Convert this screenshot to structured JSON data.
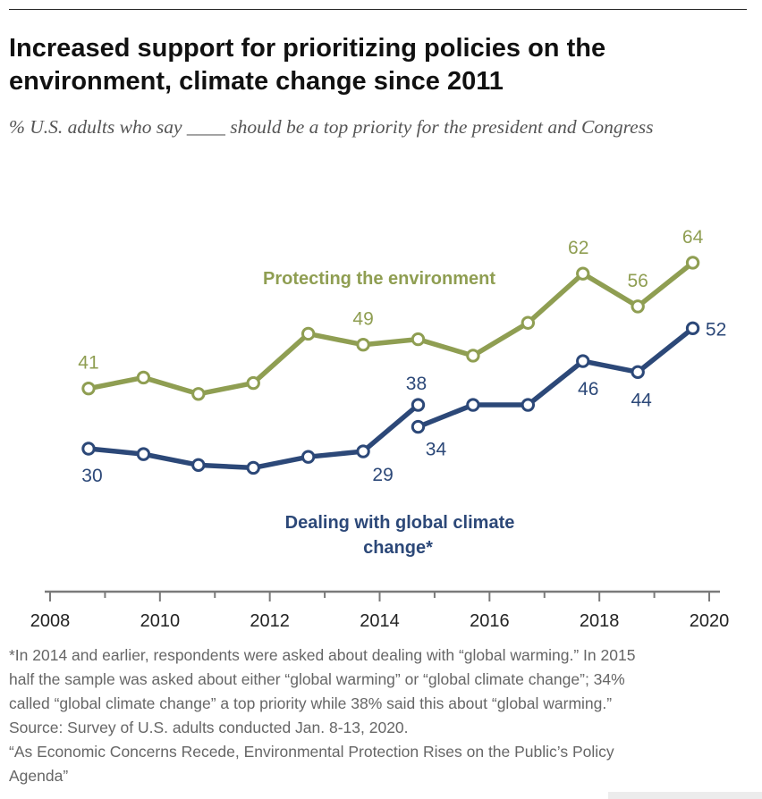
{
  "header": {
    "title": "Increased support for prioritizing policies on the environment, climate change since 2011",
    "subtitle": "% U.S. adults who say ____ should be a top priority for the president and Congress"
  },
  "chart_data": {
    "type": "line",
    "title": "Increased support for prioritizing policies on the environment, climate change since 2011",
    "xlabel": "",
    "ylabel": "",
    "xlim": [
      2008,
      2020
    ],
    "ylim": [
      20,
      70
    ],
    "x_ticks": [
      "2008",
      "2010",
      "2012",
      "2014",
      "2016",
      "2018",
      "2020"
    ],
    "grid": false,
    "colors": {
      "environment": "#8f9e52",
      "climate": "#2c4878",
      "axis": "#7a7a7a",
      "tick_text": "#222222"
    },
    "series": [
      {
        "name": "Protecting the environment",
        "key": "environment",
        "points": [
          [
            2008.7,
            41
          ],
          [
            2009.7,
            43
          ],
          [
            2010.7,
            40
          ],
          [
            2011.7,
            42
          ],
          [
            2012.7,
            51
          ],
          [
            2013.7,
            49
          ],
          [
            2014.7,
            50
          ],
          [
            2015.7,
            47
          ],
          [
            2016.7,
            53
          ],
          [
            2017.7,
            62
          ],
          [
            2018.7,
            56
          ],
          [
            2019.7,
            64
          ]
        ],
        "labels": {
          "0": "41",
          "5": "49",
          "9": "62",
          "10": "56",
          "11": "64"
        }
      },
      {
        "name": "Dealing with global climate change*",
        "key": "climate_a",
        "points": [
          [
            2008.7,
            30
          ],
          [
            2009.7,
            29
          ],
          [
            2010.7,
            27
          ],
          [
            2011.7,
            26.5
          ],
          [
            2012.7,
            28.5
          ],
          [
            2013.7,
            29.5
          ],
          [
            2014.7,
            38
          ]
        ],
        "labels": {
          "0": "30",
          "5": "29",
          "6": "38"
        }
      },
      {
        "name": "Dealing with global climate change*",
        "key": "climate_b",
        "points": [
          [
            2014.7,
            34
          ],
          [
            2015.7,
            38
          ],
          [
            2016.7,
            38
          ],
          [
            2017.7,
            46
          ],
          [
            2018.7,
            44
          ],
          [
            2019.7,
            52
          ]
        ],
        "labels": {
          "0": "34",
          "3": "46",
          "4": "44",
          "5": "52"
        }
      }
    ],
    "series_labels": {
      "environment": "Protecting the environment",
      "climate_line1": "Dealing with global climate",
      "climate_line2": "change*"
    }
  },
  "notes": {
    "line1": "*In 2014 and earlier, respondents were asked about dealing with “global warming.” In 2015",
    "line2": "half the sample was asked about either “global warming” or “global climate change”; 34%",
    "line3": "called “global climate change” a top priority while 38% said this about “global warming.”",
    "source": "Source: Survey of U.S. adults conducted Jan. 8-13, 2020.",
    "report_line1": "“As Economic Concerns Recede, Environmental Protection Rises on the Public’s Policy",
    "report_line2": "Agenda”"
  }
}
